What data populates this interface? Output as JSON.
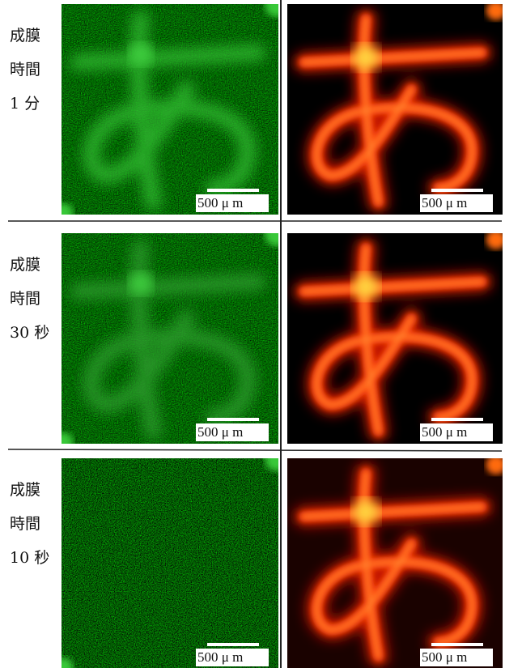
{
  "rows": [
    {
      "label_lines": [
        "成膜",
        "時間",
        "1 分"
      ],
      "scale_bars": [
        "500 μ m",
        "500 μ m"
      ]
    },
    {
      "label_lines": [
        "成膜",
        "時間",
        "30 秒"
      ],
      "scale_bars": [
        "500 μ m",
        "500 μ m"
      ]
    },
    {
      "label_lines": [
        "成膜",
        "時間",
        "10 秒"
      ],
      "scale_bars": [
        "500 μ m",
        "500 μ m"
      ]
    }
  ]
}
